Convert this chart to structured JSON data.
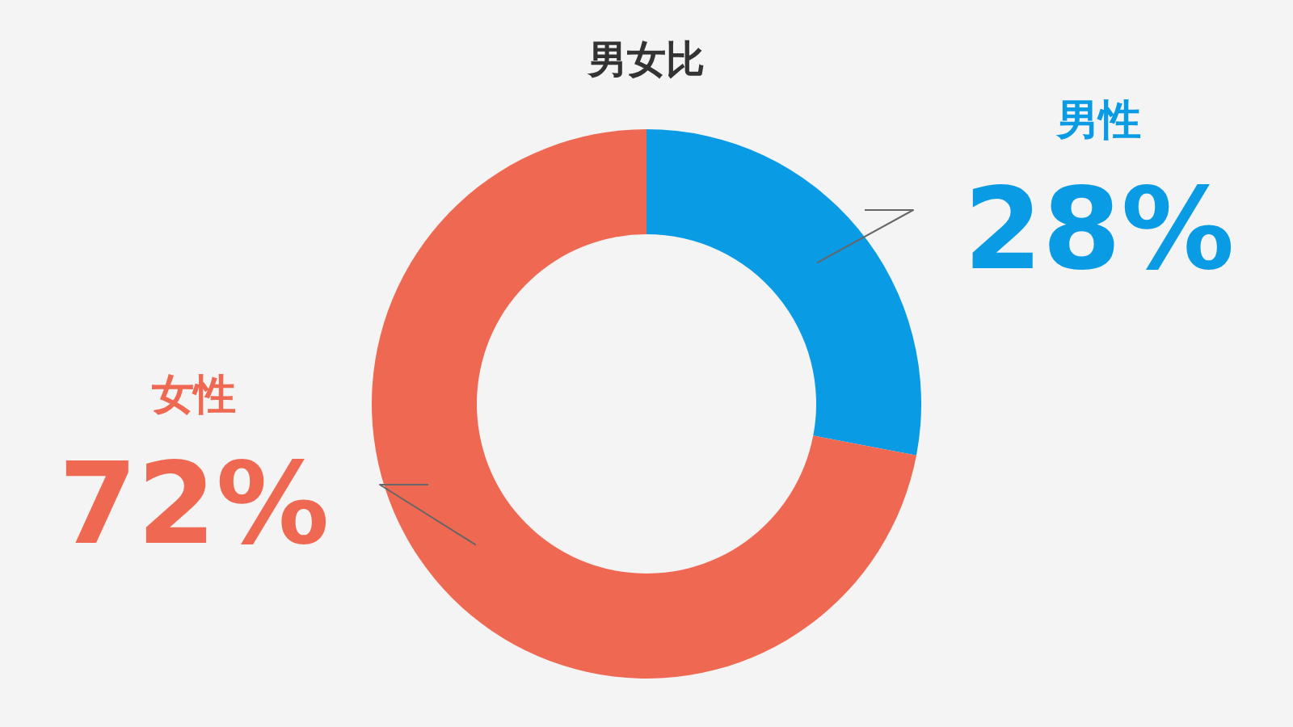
{
  "chart_data": {
    "type": "donut",
    "title": "男女比",
    "categories": [
      "男性",
      "女性"
    ],
    "values": [
      28,
      72
    ],
    "colors": [
      "#0a9be5",
      "#ef6852"
    ],
    "value_labels": [
      "28%",
      "72%"
    ]
  }
}
